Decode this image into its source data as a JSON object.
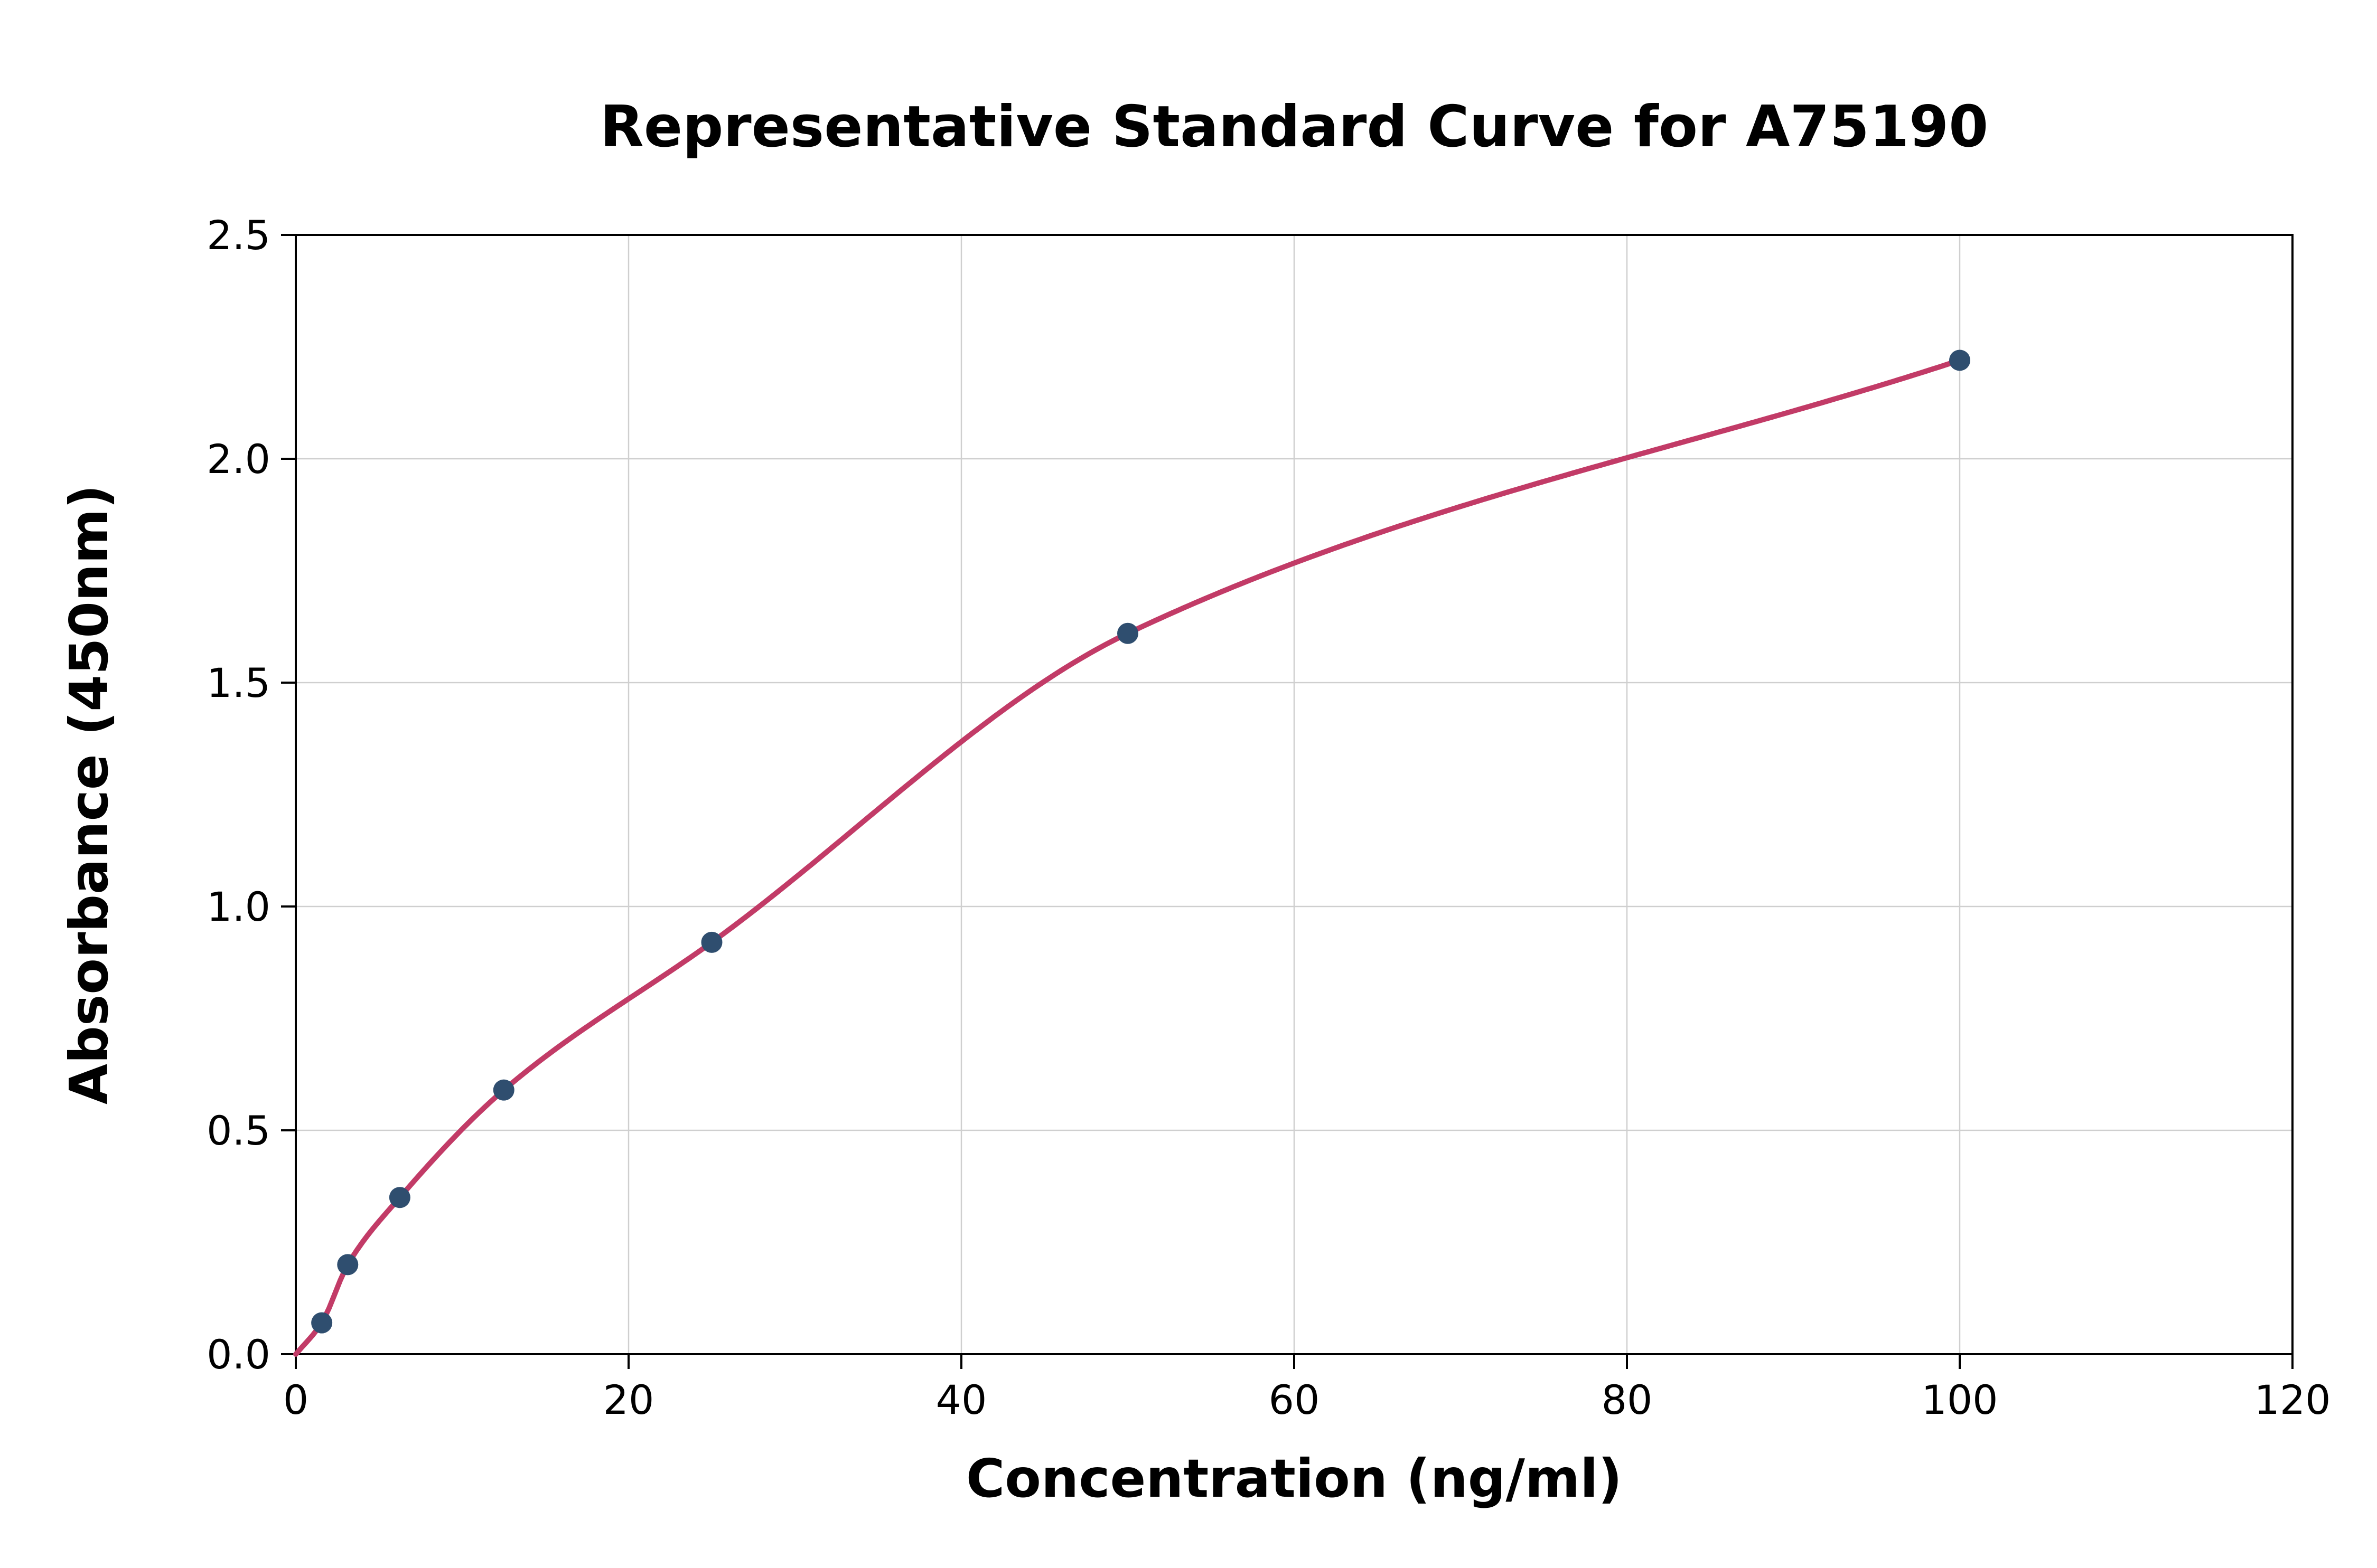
{
  "chart_data": {
    "type": "scatter",
    "title": "Representative Standard Curve for A75190",
    "xlabel": "Concentration (ng/ml)",
    "ylabel": "Absorbance (450nm)",
    "xlim": [
      0,
      120
    ],
    "ylim": [
      0,
      2.5
    ],
    "xticks": [
      0,
      20,
      40,
      60,
      80,
      100,
      120
    ],
    "xtick_labels": [
      "0",
      "20",
      "40",
      "60",
      "80",
      "100",
      "120"
    ],
    "yticks": [
      0,
      0.5,
      1.0,
      1.5,
      2.0,
      2.5
    ],
    "ytick_labels": [
      "0.0",
      "0.5",
      "1.0",
      "1.5",
      "2.0",
      "2.5"
    ],
    "grid": true,
    "legend": "none",
    "points": {
      "x": [
        1.56,
        3.12,
        6.25,
        12.5,
        25,
        50,
        100
      ],
      "y": [
        0.07,
        0.2,
        0.35,
        0.59,
        0.92,
        1.61,
        2.22
      ]
    },
    "fit_curve": {
      "type": "smooth-through-points",
      "start": {
        "x": 0,
        "y": 0.0
      },
      "end_x": 100
    },
    "colors": {
      "point": "#2f4e6f",
      "curve": "#c23b67",
      "grid": "#cfcfcf",
      "axis": "#000000",
      "background": "#ffffff"
    }
  }
}
